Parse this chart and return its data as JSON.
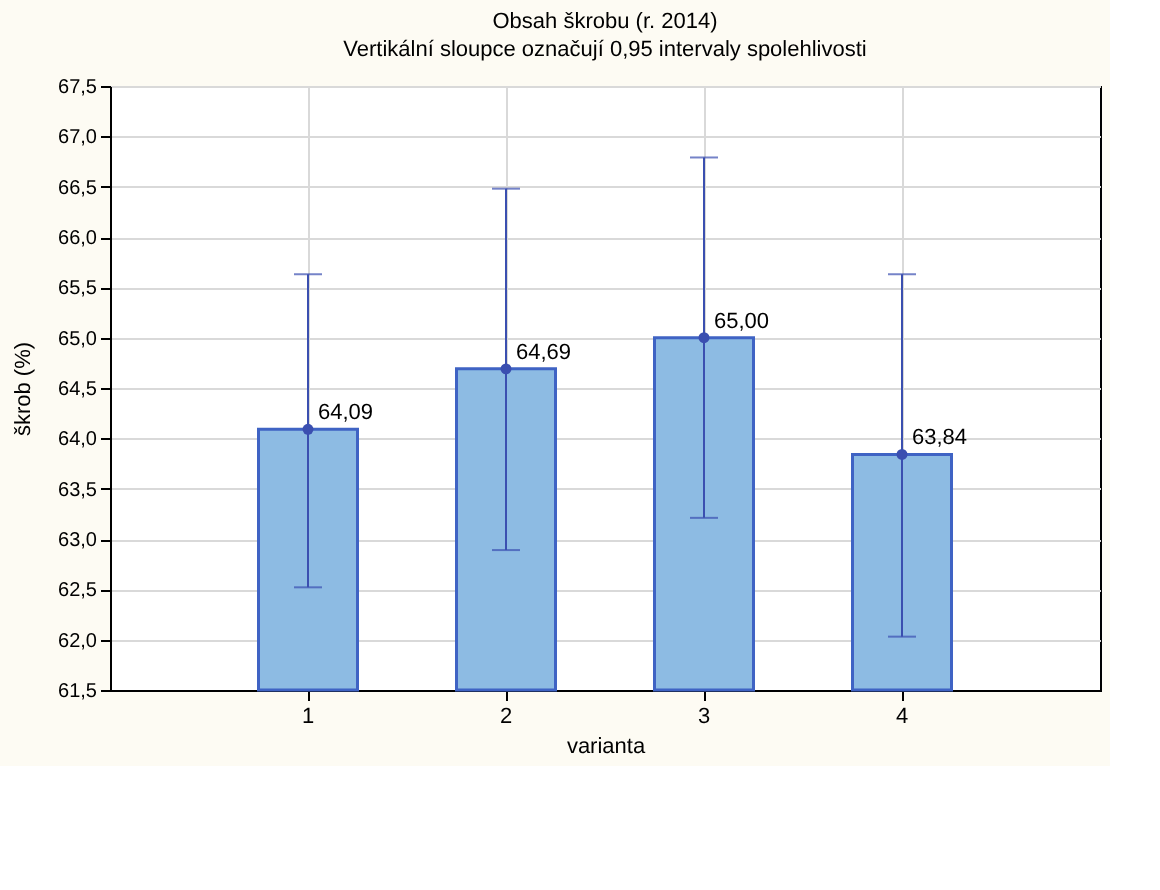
{
  "chart_data": {
    "type": "bar",
    "title": "Obsah škrobu (r. 2014)",
    "subtitle": "Vertikální sloupce označují 0,95 intervaly spolehlivosti",
    "xlabel": "varianta",
    "ylabel": "škrob (%)",
    "categories": [
      "1",
      "2",
      "3",
      "4"
    ],
    "series": [
      {
        "color": "#8dbbe3",
        "values": [
          64.09,
          64.69,
          65.0,
          63.84
        ],
        "errors": [
          [
            62.52,
            65.63
          ],
          [
            62.89,
            66.48
          ],
          [
            63.21,
            66.79
          ],
          [
            62.03,
            65.63
          ]
        ],
        "value_labels": [
          "64,09",
          "64,69",
          "65,00",
          "63,84"
        ]
      },
      {
        "type": "scatter",
        "color": "#3b4fb0",
        "x": [
          "1",
          "2",
          "3",
          "4"
        ],
        "values": [
          64.09,
          64.69,
          65.0,
          63.84
        ],
        "marker": "circle"
      }
    ],
    "ylim": [
      61.5,
      67.5
    ],
    "yticks": [
      {
        "value": 61.5,
        "label": "61,5"
      },
      {
        "value": 62.0,
        "label": "62,0"
      },
      {
        "value": 62.5,
        "label": "62,5"
      },
      {
        "value": 63.0,
        "label": "63,0"
      },
      {
        "value": 63.5,
        "label": "63,5"
      },
      {
        "value": 64.0,
        "label": "64,0"
      },
      {
        "value": 64.5,
        "label": "64,5"
      },
      {
        "value": 65.0,
        "label": "65,0"
      },
      {
        "value": 65.5,
        "label": "65,5"
      },
      {
        "value": 66.0,
        "label": "66,0"
      },
      {
        "value": 66.5,
        "label": "66,5"
      },
      {
        "value": 67.0,
        "label": "67,0"
      },
      {
        "value": 67.5,
        "label": "67,5"
      }
    ],
    "grid": true
  }
}
